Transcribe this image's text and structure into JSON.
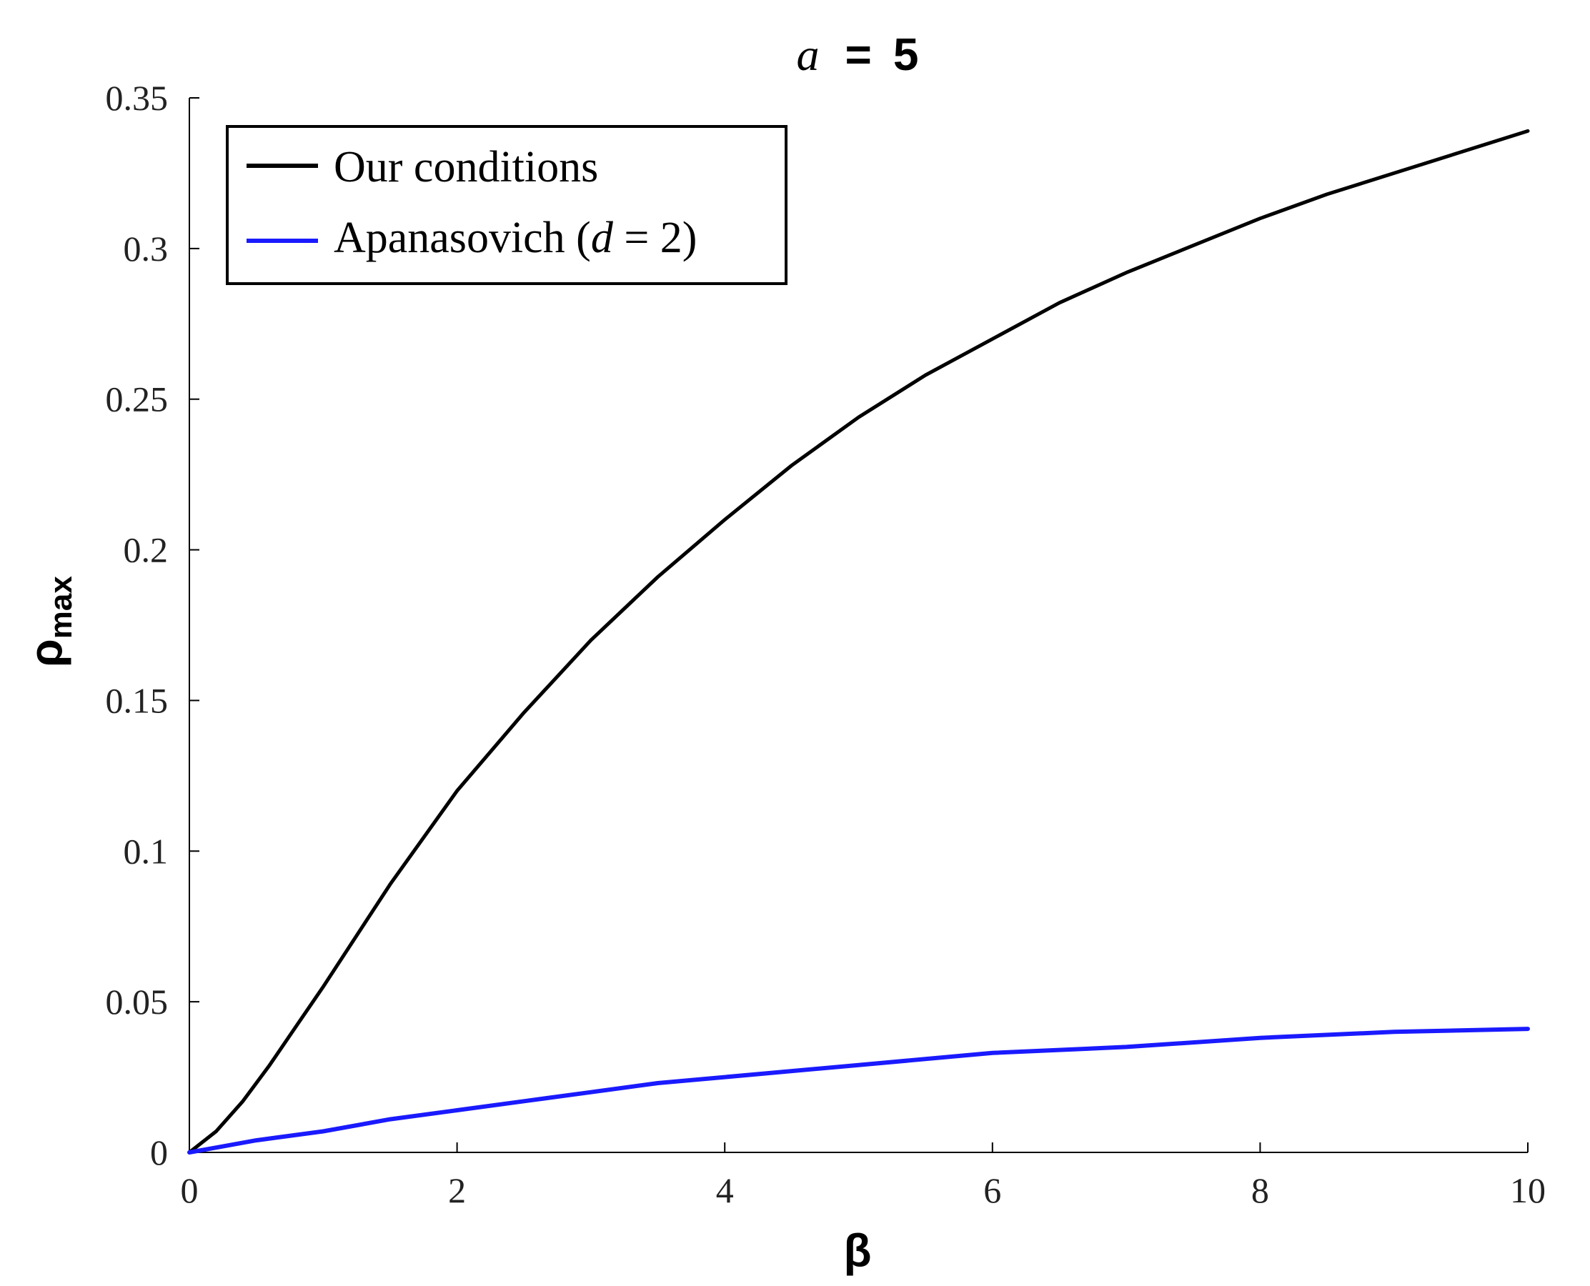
{
  "chart_data": {
    "type": "line",
    "title": {
      "variable": "a",
      "operator": "=",
      "value": "5"
    },
    "xlabel": "β",
    "ylabel": {
      "symbol": "ρ",
      "subscript": "max"
    },
    "xlim": [
      0,
      10
    ],
    "ylim": [
      0,
      0.35
    ],
    "xticks": [
      0,
      2,
      4,
      6,
      8,
      10
    ],
    "xtick_labels": [
      "0",
      "2",
      "4",
      "6",
      "8",
      "10"
    ],
    "yticks": [
      0,
      0.05,
      0.1,
      0.15,
      0.2,
      0.25,
      0.3,
      0.35
    ],
    "ytick_labels": [
      "0",
      "0.05",
      "0.1",
      "0.15",
      "0.2",
      "0.25",
      "0.3",
      "0.35"
    ],
    "grid": false,
    "legend_position": "top-left",
    "series": [
      {
        "name": "Our conditions",
        "legend": {
          "prefix": "Our conditions"
        },
        "color": "#000000",
        "x": [
          0,
          0.2,
          0.4,
          0.6,
          0.8,
          1.0,
          1.5,
          2.0,
          2.5,
          3.0,
          3.5,
          4.0,
          4.5,
          5.0,
          5.5,
          6.0,
          6.5,
          7.0,
          7.5,
          8.0,
          8.5,
          9.0,
          9.5,
          10.0
        ],
        "y": [
          0,
          0.007,
          0.017,
          0.029,
          0.042,
          0.055,
          0.089,
          0.12,
          0.146,
          0.17,
          0.191,
          0.21,
          0.228,
          0.244,
          0.258,
          0.27,
          0.282,
          0.292,
          0.301,
          0.31,
          0.318,
          0.325,
          0.332,
          0.339
        ]
      },
      {
        "name": "Apanasovich (d = 2)",
        "legend": {
          "prefix": "Apanasovich (",
          "variable": "d",
          "suffix": " = 2)"
        },
        "color": "#1a1aff",
        "x": [
          0,
          0.25,
          0.5,
          1.0,
          1.5,
          2.0,
          2.5,
          3.0,
          3.5,
          4.0,
          5.0,
          6.0,
          7.0,
          8.0,
          9.0,
          10.0
        ],
        "y": [
          0,
          0.002,
          0.004,
          0.007,
          0.011,
          0.014,
          0.017,
          0.02,
          0.023,
          0.025,
          0.029,
          0.033,
          0.035,
          0.038,
          0.04,
          0.041
        ]
      }
    ]
  }
}
